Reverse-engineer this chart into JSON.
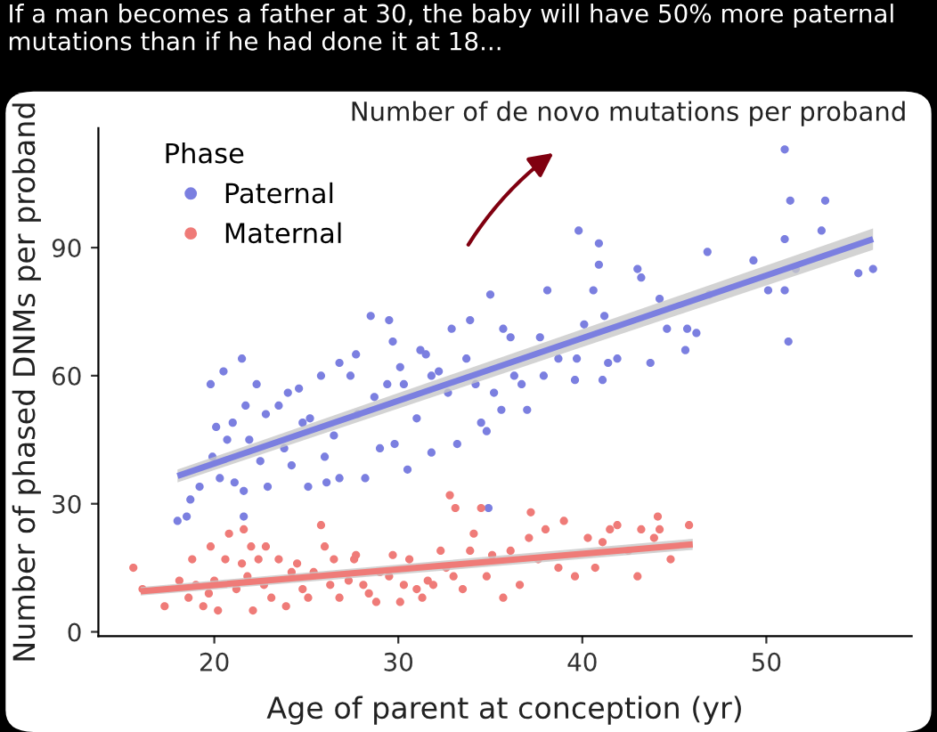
{
  "chart_data": {
    "type": "scatter",
    "title": "If a man becomes a father at 30, the baby will have 50% more paternal mutations than if he had done it at 18...",
    "subtitle": "Number of de novo mutations per proband",
    "xlabel": "Age of parent at conception (yr)",
    "ylabel": "Number of phased DNMs per proband",
    "legend_title": "Phase",
    "legend": "top left",
    "grid": false,
    "marker": "circle",
    "xlim": [
      13.7,
      57.9
    ],
    "ylim": [
      -1,
      118
    ],
    "xticks": [
      20,
      30,
      40,
      50
    ],
    "yticks": [
      0,
      30,
      60,
      90
    ],
    "series": [
      {
        "name": "Paternal",
        "color": "#7b7fe0",
        "x": [
          18.0,
          18.5,
          18.7,
          19.2,
          19.8,
          19.9,
          20.1,
          20.3,
          20.5,
          20.7,
          21.0,
          21.1,
          21.5,
          21.6,
          21.6,
          21.7,
          21.9,
          22.3,
          22.5,
          22.8,
          22.9,
          23.5,
          23.8,
          24.0,
          24.2,
          24.6,
          24.8,
          25.1,
          25.2,
          25.8,
          26.0,
          26.1,
          26.5,
          26.8,
          26.8,
          27.4,
          27.7,
          27.8,
          28.2,
          28.5,
          28.7,
          29.0,
          29.4,
          29.5,
          29.7,
          29.8,
          30.1,
          30.3,
          30.5,
          31.0,
          31.2,
          31.5,
          31.8,
          31.8,
          32.2,
          32.7,
          32.9,
          33.2,
          33.7,
          33.9,
          34.2,
          34.5,
          34.8,
          34.9,
          35.0,
          35.2,
          35.6,
          35.7,
          36.1,
          36.3,
          36.7,
          37.0,
          37.7,
          37.9,
          38.1,
          38.7,
          39.6,
          39.7,
          39.8,
          40.1,
          40.6,
          40.9,
          40.9,
          41.1,
          41.2,
          41.4,
          41.9,
          43.0,
          43.2,
          43.7,
          44.2,
          44.6,
          45.6,
          45.7,
          46.2,
          46.8,
          46.9,
          49.3,
          50.1,
          51.0,
          51.0,
          51.2,
          51.3,
          51.0,
          51.6,
          53.0,
          53.2,
          55.0,
          55.8
        ],
        "values": [
          26,
          27,
          31,
          34,
          58,
          41,
          48,
          36,
          61,
          45,
          49,
          35,
          64,
          33,
          27,
          53,
          45,
          58,
          40,
          51,
          34,
          53,
          43,
          56,
          39,
          57,
          49,
          34,
          50,
          60,
          41,
          35,
          46,
          63,
          36,
          60,
          65,
          51,
          36,
          74,
          55,
          43,
          58,
          73,
          68,
          44,
          62,
          58,
          38,
          50,
          66,
          65,
          60,
          42,
          61,
          56,
          71,
          44,
          64,
          73,
          58,
          49,
          47,
          29,
          79,
          56,
          52,
          71,
          69,
          60,
          58,
          52,
          69,
          60,
          80,
          64,
          59,
          64,
          94,
          72,
          80,
          91,
          86,
          59,
          74,
          63,
          64,
          85,
          83,
          63,
          78,
          71,
          66,
          71,
          70,
          89,
          79,
          87,
          80,
          92,
          113,
          68,
          101,
          80,
          85,
          94,
          101,
          84,
          85
        ]
      },
      {
        "name": "Maternal",
        "color": "#ef7b78",
        "x": [
          15.6,
          16.1,
          17.3,
          18.1,
          18.6,
          18.8,
          19.0,
          19.4,
          19.7,
          19.8,
          20.0,
          20.2,
          20.6,
          20.8,
          21.2,
          21.5,
          21.6,
          21.8,
          22.0,
          22.1,
          22.4,
          22.7,
          22.8,
          23.1,
          23.5,
          23.9,
          24.2,
          24.5,
          24.8,
          25.1,
          25.4,
          25.8,
          26.0,
          26.3,
          26.5,
          26.8,
          27.3,
          27.6,
          27.7,
          28.1,
          28.4,
          28.8,
          29.0,
          29.5,
          29.7,
          30.1,
          30.3,
          30.6,
          31.0,
          31.3,
          31.6,
          31.9,
          32.3,
          32.6,
          32.8,
          33.0,
          33.1,
          33.5,
          33.9,
          34.1,
          34.5,
          34.8,
          35.1,
          35.7,
          36.1,
          36.6,
          37.1,
          37.2,
          37.6,
          38.0,
          38.7,
          39.0,
          39.6,
          40.3,
          40.7,
          41.1,
          41.5,
          41.9,
          42.5,
          43.0,
          43.2,
          43.9,
          44.1,
          44.2,
          44.8,
          45.8
        ],
        "values": [
          15,
          10,
          6,
          12,
          8,
          17,
          11,
          6,
          9,
          20,
          12,
          5,
          17,
          23,
          10,
          16,
          24,
          13,
          20,
          5,
          17,
          11,
          20,
          8,
          17,
          6,
          14,
          16,
          10,
          8,
          14,
          25,
          20,
          11,
          17,
          8,
          12,
          17,
          18,
          11,
          9,
          7,
          14,
          13,
          18,
          7,
          11,
          17,
          10,
          8,
          12,
          11,
          19,
          15,
          32,
          13,
          29,
          10,
          19,
          23,
          29,
          13,
          18,
          8,
          19,
          11,
          22,
          28,
          17,
          24,
          15,
          26,
          13,
          22,
          15,
          21,
          24,
          25,
          19,
          13,
          24,
          22,
          27,
          24,
          17,
          25
        ]
      },
      {
        "type": "line",
        "marker": "none",
        "color": "#7b7fe0",
        "x": [
          18,
          55.8
        ],
        "values": [
          36.5,
          92
        ],
        "lower": [
          35,
          89.5
        ],
        "upper": [
          38,
          94.5
        ]
      },
      {
        "type": "line",
        "marker": "none",
        "color": "#ef7b78",
        "x": [
          16,
          46
        ],
        "values": [
          9.5,
          20.5
        ],
        "lower": [
          8.5,
          19.2
        ],
        "upper": [
          10.5,
          21.8
        ]
      }
    ]
  }
}
